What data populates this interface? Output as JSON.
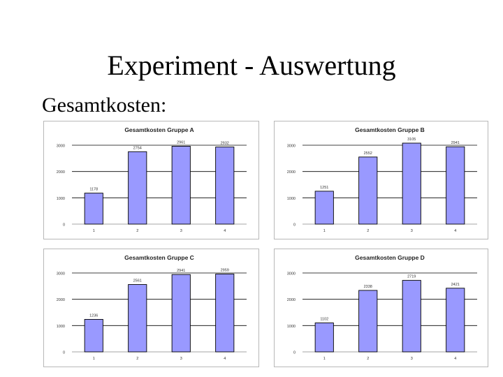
{
  "slide": {
    "title": "Experiment - Auswertung",
    "subtitle": "Gesamtkosten:"
  },
  "colors": {
    "bar_fill": "#9999ff",
    "bar_stroke": "#000000",
    "gridline": "#000000"
  },
  "chart_data": [
    {
      "type": "bar",
      "title": "Gesamtkosten Gruppe A",
      "categories": [
        "1",
        "2",
        "3",
        "4"
      ],
      "values": [
        1178,
        2754,
        2961,
        2932
      ],
      "value_labels": [
        "1178",
        "2754",
        "2961",
        "2932"
      ],
      "ylim": [
        0,
        3000
      ],
      "yticks": [
        "0",
        "1000",
        "2000",
        "3000"
      ],
      "grid": true
    },
    {
      "type": "bar",
      "title": "Gesamtkosten Gruppe B",
      "categories": [
        "1",
        "2",
        "3",
        "4"
      ],
      "values": [
        1251,
        2552,
        3105,
        2941
      ],
      "value_labels": [
        "1251",
        "2552",
        "3105",
        "2941"
      ],
      "ylim": [
        0,
        3000
      ],
      "yticks": [
        "0",
        "1000",
        "2000",
        "3000"
      ],
      "grid": true
    },
    {
      "type": "bar",
      "title": "Gesamtkosten Gruppe C",
      "categories": [
        "1",
        "2",
        "3",
        "4"
      ],
      "values": [
        1236,
        2561,
        2941,
        2959
      ],
      "value_labels": [
        "1236",
        "2561",
        "2941",
        "2959"
      ],
      "ylim": [
        0,
        3000
      ],
      "yticks": [
        "0",
        "1000",
        "2000",
        "3000"
      ],
      "grid": true
    },
    {
      "type": "bar",
      "title": "Gesamtkosten Gruppe D",
      "categories": [
        "1",
        "2",
        "3",
        "4"
      ],
      "values": [
        1102,
        2338,
        2719,
        2421
      ],
      "value_labels": [
        "1102",
        "2338",
        "2719",
        "2421"
      ],
      "ylim": [
        0,
        3000
      ],
      "yticks": [
        "0",
        "1000",
        "2000",
        "3000"
      ],
      "grid": true
    }
  ]
}
